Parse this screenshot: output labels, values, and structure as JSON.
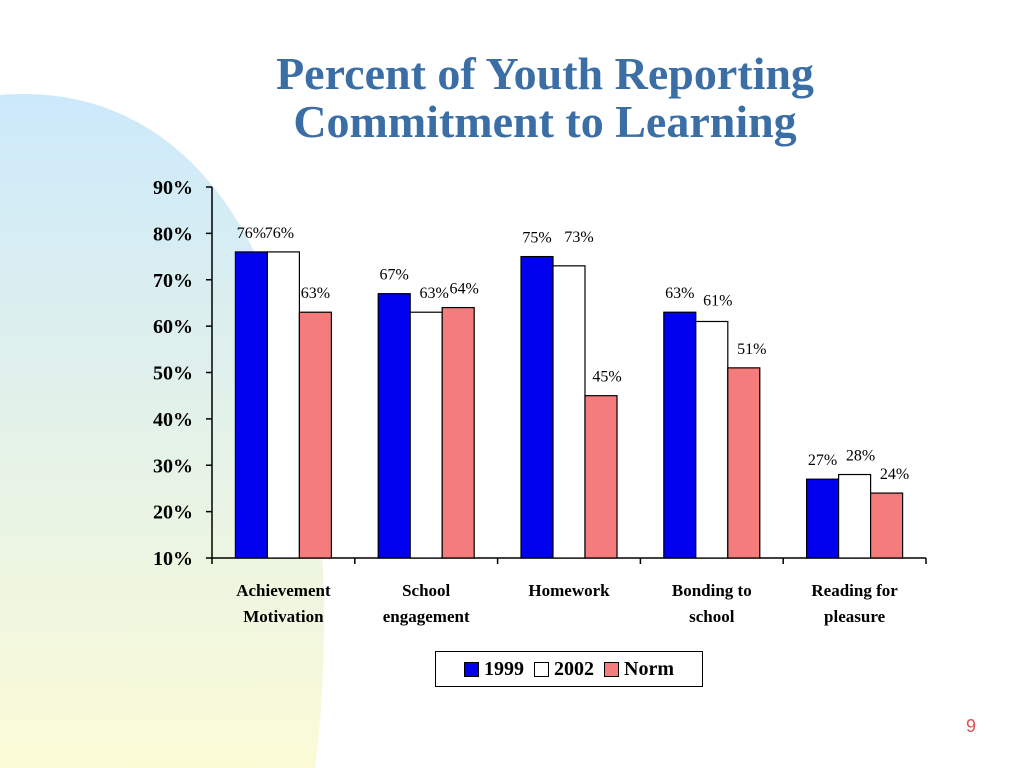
{
  "title_line1": "Percent of Youth Reporting",
  "title_line2": "Commitment to Learning",
  "page_number": "9",
  "colors": {
    "title": "#3a6ea5",
    "series_1999": "#0000ee",
    "series_2002": "#ffffff",
    "series_norm": "#f47c7c",
    "page_number": "#e05050"
  },
  "chart_data": {
    "type": "bar",
    "title": "Percent of Youth Reporting Commitment to Learning",
    "categories": [
      [
        "Achievement",
        "Motivation"
      ],
      [
        "School",
        "engagement"
      ],
      [
        "Homework"
      ],
      [
        "Bonding to",
        "school"
      ],
      [
        "Reading for",
        "pleasure"
      ]
    ],
    "series": [
      {
        "name": "1999",
        "values": [
          76,
          67,
          75,
          63,
          27
        ],
        "labels": [
          "76%",
          "67%",
          "75%",
          "63%",
          "27%"
        ]
      },
      {
        "name": "2002",
        "values": [
          76,
          63,
          73,
          61,
          28
        ],
        "labels": [
          "76%",
          "63%",
          "73%",
          "61%",
          "28%"
        ]
      },
      {
        "name": "Norm",
        "values": [
          63,
          64,
          45,
          51,
          24
        ],
        "labels": [
          "63%",
          "64%",
          "45%",
          "51%",
          "24%"
        ]
      }
    ],
    "y_ticks": [
      "10%",
      "20%",
      "30%",
      "40%",
      "50%",
      "60%",
      "70%",
      "80%",
      "90%"
    ],
    "ylim": [
      10,
      90
    ],
    "legend_position": "bottom",
    "grid": false
  }
}
